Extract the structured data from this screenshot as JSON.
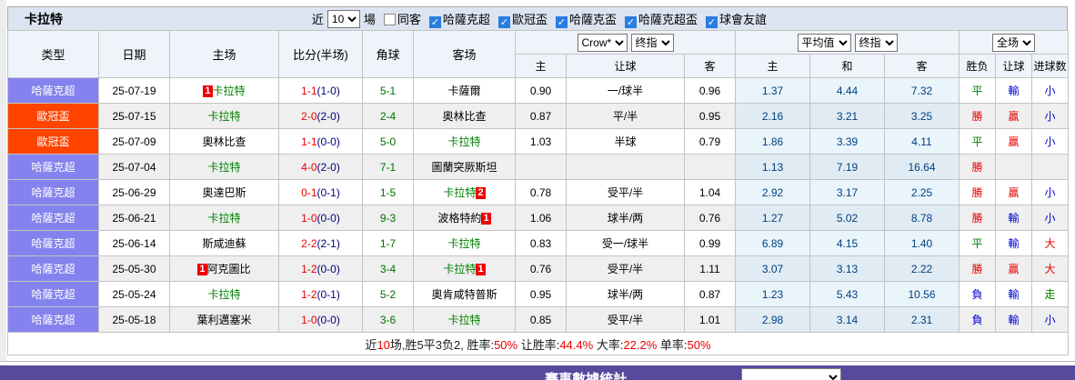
{
  "title_bar": {
    "team": "卡拉特",
    "near_label": "近",
    "matches_count": "10",
    "matches_label": "場",
    "filters": [
      {
        "label": "同客",
        "checked": false
      },
      {
        "label": "哈薩克超",
        "checked": true
      },
      {
        "label": "歐冠盃",
        "checked": true
      },
      {
        "label": "哈薩克盃",
        "checked": true
      },
      {
        "label": "哈薩克超盃",
        "checked": true
      },
      {
        "label": "球會友誼",
        "checked": true
      }
    ]
  },
  "table": {
    "col_headers": [
      "类型",
      "日期",
      "主场",
      "比分(半场)",
      "角球",
      "客场"
    ],
    "selects": {
      "company": "Crow*",
      "company_index": "终指",
      "average": "平均值",
      "average_index": "终指",
      "scope": "全场"
    },
    "sub_headers": [
      "主",
      "让球",
      "客",
      "主",
      "和",
      "客",
      "胜负",
      "让球",
      "进球数"
    ],
    "league_colors": {
      "哈薩克超": "#8482ee",
      "歐冠盃": "#ff4400"
    },
    "rows": [
      {
        "league": "哈薩克超",
        "date": "25-07-19",
        "home": {
          "name": "卡拉特",
          "green": true,
          "badge_before": "1"
        },
        "score_full": "1-1",
        "score_half": "(1-0)",
        "corner": "5-1",
        "away": {
          "name": "卡薩爾",
          "green": false
        },
        "odds": [
          "0.90",
          "一/球半",
          "0.96"
        ],
        "avg": [
          "1.37",
          "4.44",
          "7.32"
        ],
        "results": [
          [
            "平",
            "green"
          ],
          [
            "輸",
            "blue"
          ],
          [
            "小",
            "blue"
          ]
        ]
      },
      {
        "league": "歐冠盃",
        "date": "25-07-15",
        "home": {
          "name": "卡拉特",
          "green": true
        },
        "score_full": "2-0",
        "score_half": "(2-0)",
        "corner": "2-4",
        "away": {
          "name": "奧林比查",
          "green": false
        },
        "odds": [
          "0.87",
          "平/半",
          "0.95"
        ],
        "avg": [
          "2.16",
          "3.21",
          "3.25"
        ],
        "results": [
          [
            "勝",
            "red"
          ],
          [
            "贏",
            "red"
          ],
          [
            "小",
            "blue"
          ]
        ]
      },
      {
        "league": "歐冠盃",
        "date": "25-07-09",
        "home": {
          "name": "奧林比查",
          "green": false
        },
        "score_full": "1-1",
        "score_half": "(0-0)",
        "corner": "5-0",
        "away": {
          "name": "卡拉特",
          "green": true
        },
        "odds": [
          "1.03",
          "半球",
          "0.79"
        ],
        "avg": [
          "1.86",
          "3.39",
          "4.11"
        ],
        "results": [
          [
            "平",
            "green"
          ],
          [
            "贏",
            "red"
          ],
          [
            "小",
            "blue"
          ]
        ]
      },
      {
        "league": "哈薩克超",
        "date": "25-07-04",
        "home": {
          "name": "卡拉特",
          "green": true
        },
        "score_full": "4-0",
        "score_half": "(2-0)",
        "corner": "7-1",
        "away": {
          "name": "圖蘭突厥斯坦",
          "green": false
        },
        "odds": [
          "",
          "",
          ""
        ],
        "avg": [
          "1.13",
          "7.19",
          "16.64"
        ],
        "results": [
          [
            "勝",
            "red"
          ],
          [
            "",
            ""
          ],
          [
            "",
            ""
          ]
        ]
      },
      {
        "league": "哈薩克超",
        "date": "25-06-29",
        "home": {
          "name": "奧達巴斯",
          "green": false
        },
        "score_full": "0-1",
        "score_half": "(0-1)",
        "corner": "1-5",
        "away": {
          "name": "卡拉特",
          "green": true,
          "badge_after": "2"
        },
        "odds": [
          "0.78",
          "受平/半",
          "1.04"
        ],
        "avg": [
          "2.92",
          "3.17",
          "2.25"
        ],
        "results": [
          [
            "勝",
            "red"
          ],
          [
            "贏",
            "red"
          ],
          [
            "小",
            "blue"
          ]
        ]
      },
      {
        "league": "哈薩克超",
        "date": "25-06-21",
        "home": {
          "name": "卡拉特",
          "green": true
        },
        "score_full": "1-0",
        "score_half": "(0-0)",
        "corner": "9-3",
        "away": {
          "name": "波格特約",
          "green": false,
          "badge_after": "1"
        },
        "odds": [
          "1.06",
          "球半/两",
          "0.76"
        ],
        "avg": [
          "1.27",
          "5.02",
          "8.78"
        ],
        "results": [
          [
            "勝",
            "red"
          ],
          [
            "輸",
            "blue"
          ],
          [
            "小",
            "blue"
          ]
        ]
      },
      {
        "league": "哈薩克超",
        "date": "25-06-14",
        "home": {
          "name": "斯咸迪蘇",
          "green": false
        },
        "score_full": "2-2",
        "score_half": "(2-1)",
        "corner": "1-7",
        "away": {
          "name": "卡拉特",
          "green": true
        },
        "odds": [
          "0.83",
          "受一/球半",
          "0.99"
        ],
        "avg": [
          "6.89",
          "4.15",
          "1.40"
        ],
        "results": [
          [
            "平",
            "green"
          ],
          [
            "輸",
            "blue"
          ],
          [
            "大",
            "red"
          ]
        ]
      },
      {
        "league": "哈薩克超",
        "date": "25-05-30",
        "home": {
          "name": "阿克圖比",
          "green": false,
          "badge_before": "1"
        },
        "score_full": "1-2",
        "score_half": "(0-0)",
        "corner": "3-4",
        "away": {
          "name": "卡拉特",
          "green": true,
          "badge_after": "1"
        },
        "odds": [
          "0.76",
          "受平/半",
          "1.11"
        ],
        "avg": [
          "3.07",
          "3.13",
          "2.22"
        ],
        "results": [
          [
            "勝",
            "red"
          ],
          [
            "贏",
            "red"
          ],
          [
            "大",
            "red"
          ]
        ]
      },
      {
        "league": "哈薩克超",
        "date": "25-05-24",
        "home": {
          "name": "卡拉特",
          "green": true
        },
        "score_full": "1-2",
        "score_half": "(0-1)",
        "corner": "5-2",
        "away": {
          "name": "奧肯咸特普斯",
          "green": false
        },
        "odds": [
          "0.95",
          "球半/两",
          "0.87"
        ],
        "avg": [
          "1.23",
          "5.43",
          "10.56"
        ],
        "results": [
          [
            "負",
            "blue"
          ],
          [
            "輸",
            "blue"
          ],
          [
            "走",
            "green"
          ]
        ]
      },
      {
        "league": "哈薩克超",
        "date": "25-05-18",
        "home": {
          "name": "葉利邁塞米",
          "green": false
        },
        "score_full": "1-0",
        "score_half": "(0-0)",
        "corner": "3-6",
        "away": {
          "name": "卡拉特",
          "green": true
        },
        "odds": [
          "0.85",
          "受平/半",
          "1.01"
        ],
        "avg": [
          "2.98",
          "3.14",
          "2.31"
        ],
        "results": [
          [
            "負",
            "blue"
          ],
          [
            "輸",
            "blue"
          ],
          [
            "小",
            "blue"
          ]
        ]
      }
    ],
    "summary": [
      [
        "近",
        "dark"
      ],
      [
        "10",
        "red"
      ],
      [
        "场,胜5平3负2, 胜率:",
        "dark"
      ],
      [
        "50%",
        "red"
      ],
      [
        " 让胜率:",
        "dark"
      ],
      [
        "44.4%",
        "red"
      ],
      [
        " 大率:",
        "dark"
      ],
      [
        "22.2%",
        "red"
      ],
      [
        " 单率:",
        "dark"
      ],
      [
        "50%",
        "red"
      ]
    ]
  },
  "bottom_bar": {
    "label": "賽事數據統計"
  },
  "colors": {
    "league_purple": "#8482ee",
    "league_orange": "#ff4400",
    "win_red": "#e80000",
    "draw_green": "#008000",
    "lose_blue": "#0000d0",
    "avg_navy": "#004080",
    "half_navy": "#000080",
    "corner_green": "#007000",
    "bar_purple": "#564a9d",
    "check_blue": "#2a7de1"
  }
}
